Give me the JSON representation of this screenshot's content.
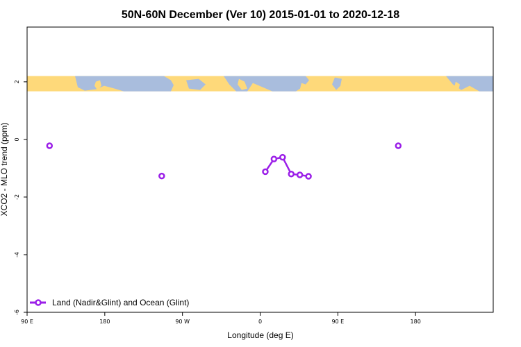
{
  "colors": {
    "series": "#9b1fe8",
    "land": "#fed97a",
    "ocean": "#a9bddd",
    "axis": "#000000",
    "background": "#ffffff"
  },
  "chart_data": {
    "type": "line",
    "title": "50N-60N December (Ver 10)   2015-01-01 to 2020-12-18",
    "xlabel": "Longitude (deg E)",
    "ylabel": "XCO2 - MLO trend (ppm)",
    "xlim": [
      -90,
      180
    ],
    "ylim": [
      -6,
      3.9
    ],
    "grid": false,
    "xticks": [
      {
        "value": -90,
        "label": "90 E"
      },
      {
        "value": -45,
        "label": "180"
      },
      {
        "value": 0,
        "label": "90 W"
      },
      {
        "value": 45,
        "label": "0"
      },
      {
        "value": 90,
        "label": "90 E"
      },
      {
        "value": 135,
        "label": "180"
      }
    ],
    "yticks": [
      {
        "value": 2,
        "label": "2"
      },
      {
        "value": 0,
        "label": "0"
      },
      {
        "value": -2,
        "label": "-2"
      },
      {
        "value": -4,
        "label": "-4"
      },
      {
        "value": -6,
        "label": "-6"
      }
    ],
    "legend": {
      "position": "bottom-left"
    },
    "map_strip": {
      "y_range": [
        1.67,
        2.2
      ],
      "description": "world map strip"
    },
    "series": [
      {
        "name": "Land (Nadir&Glint) and Ocean (Glint)",
        "points": [
          {
            "x": -77,
            "y": -0.22
          },
          {
            "x": -12,
            "y": -1.27
          },
          {
            "x": 48,
            "y": -1.12
          },
          {
            "x": 53,
            "y": -0.68
          },
          {
            "x": 58,
            "y": -0.62
          },
          {
            "x": 63,
            "y": -1.2
          },
          {
            "x": 68,
            "y": -1.23
          },
          {
            "x": 73,
            "y": -1.28
          },
          {
            "x": 125,
            "y": -0.22
          }
        ],
        "segments": [
          [
            2,
            3,
            4,
            5,
            6,
            7
          ]
        ]
      }
    ]
  }
}
